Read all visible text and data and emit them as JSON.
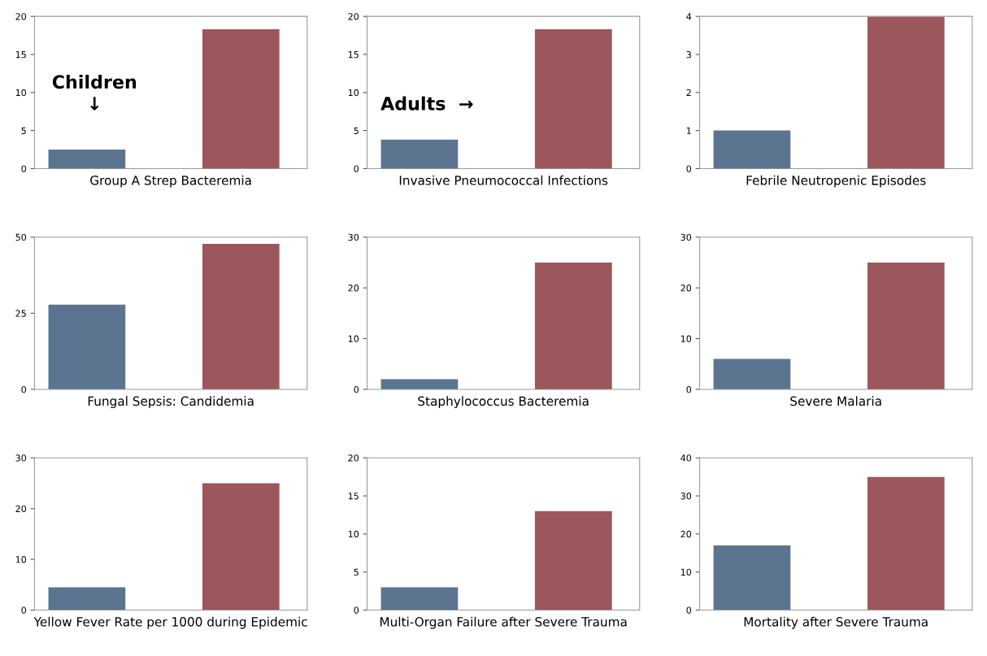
{
  "chart_data": [
    {
      "type": "bar",
      "xlabel": "Group A Strep Bacteremia",
      "categories": [
        null,
        null
      ],
      "values": [
        2.5,
        18.3
      ],
      "colors": [
        "#5b7591",
        "#9b575b"
      ],
      "ylim": [
        0,
        20
      ],
      "yticks": [
        0,
        5,
        10,
        15,
        20
      ],
      "tick_labels": "y",
      "annotations": [
        "Children\n↓"
      ]
    },
    {
      "type": "bar",
      "xlabel": "Invasive Pneumococcal Infections",
      "categories": [
        null,
        null
      ],
      "values": [
        3.8,
        18.3
      ],
      "colors": [
        "#5b7591",
        "#9b575b"
      ],
      "ylim": [
        0,
        20
      ],
      "yticks": [
        0,
        5,
        10,
        15,
        20
      ],
      "tick_labels": "y",
      "annotations": [
        "Adults  →"
      ]
    },
    {
      "type": "bar",
      "xlabel": "Febrile Neutropenic Episodes",
      "categories": [
        null,
        null
      ],
      "values": [
        1,
        4
      ],
      "colors": [
        "#5b7591",
        "#9b575b"
      ],
      "ylim": [
        0,
        4
      ],
      "yticks": [
        0,
        1,
        2,
        3,
        4
      ],
      "tick_labels": "y"
    },
    {
      "type": "bar",
      "xlabel": "Fungal Sepsis: Candidemia",
      "categories": [
        null,
        null
      ],
      "values": [
        27.8,
        47.8
      ],
      "colors": [
        "#5b7591",
        "#9b575b"
      ],
      "ylim": [
        0,
        50
      ],
      "yticks": [
        0,
        25,
        50
      ],
      "tick_labels": "y"
    },
    {
      "type": "bar",
      "xlabel": "Staphylococcus Bacteremia",
      "categories": [
        null,
        null
      ],
      "values": [
        2,
        25
      ],
      "colors": [
        "#5b7591",
        "#9b575b"
      ],
      "ylim": [
        0,
        30
      ],
      "yticks": [
        0,
        10,
        20,
        30
      ],
      "tick_labels": "y"
    },
    {
      "type": "bar",
      "xlabel": "Severe Malaria",
      "categories": [
        null,
        null
      ],
      "values": [
        6,
        25
      ],
      "colors": [
        "#5b7591",
        "#9b575b"
      ],
      "ylim": [
        0,
        30
      ],
      "yticks": [
        0,
        10,
        20,
        30
      ],
      "tick_labels": "y"
    },
    {
      "type": "bar",
      "xlabel": "Yellow Fever Rate per 1000 during Epidemic",
      "categories": [
        null,
        null
      ],
      "values": [
        4.5,
        25
      ],
      "colors": [
        "#5b7591",
        "#9b575b"
      ],
      "ylim": [
        0,
        30
      ],
      "yticks": [
        0,
        10,
        20,
        30
      ],
      "tick_labels": "y"
    },
    {
      "type": "bar",
      "xlabel": "Multi-Organ Failure after Severe Trauma",
      "categories": [
        null,
        null
      ],
      "values": [
        3,
        13
      ],
      "colors": [
        "#5b7591",
        "#9b575b"
      ],
      "ylim": [
        0,
        20
      ],
      "yticks": [
        0,
        5,
        10,
        15,
        20
      ],
      "tick_labels": "y"
    },
    {
      "type": "bar",
      "xlabel": "Mortality after Severe Trauma",
      "categories": [
        null,
        null
      ],
      "values": [
        17,
        35
      ],
      "colors": [
        "#5b7591",
        "#9b575b"
      ],
      "ylim": [
        0,
        40
      ],
      "yticks": [
        0,
        10,
        20,
        30,
        40
      ],
      "tick_labels": "y"
    }
  ]
}
